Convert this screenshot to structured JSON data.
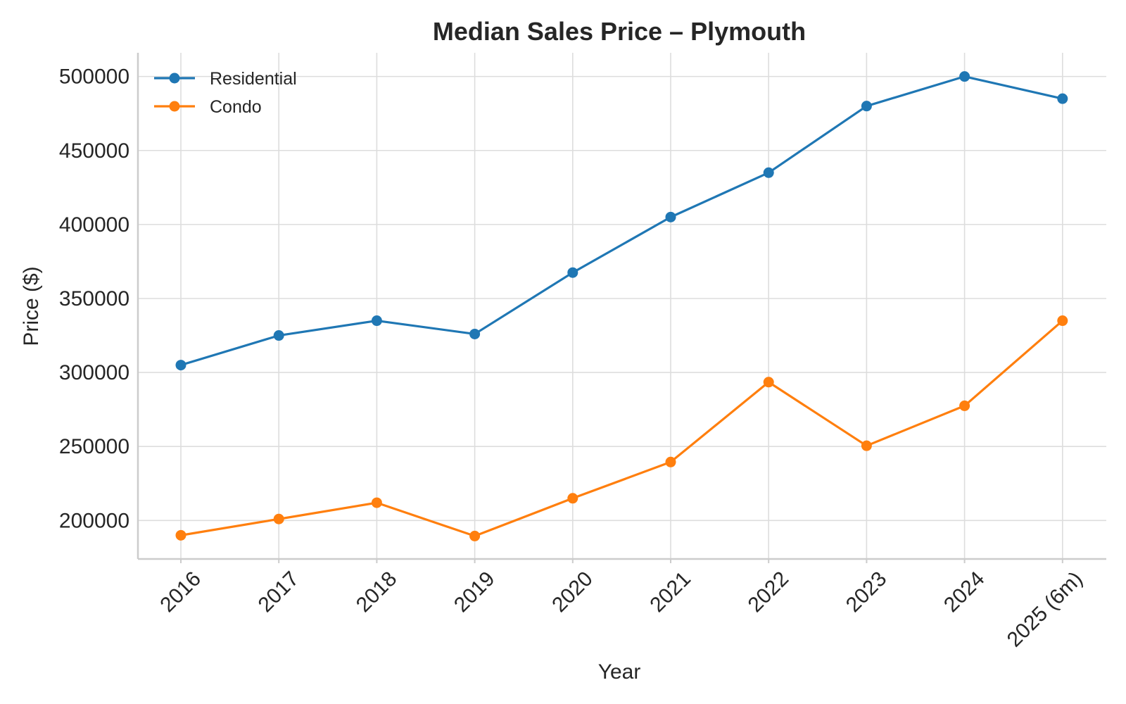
{
  "chart_data": {
    "type": "line",
    "title": "Median Sales Price – Plymouth",
    "xlabel": "Year",
    "ylabel": "Price ($)",
    "categories": [
      "2016",
      "2017",
      "2018",
      "2019",
      "2020",
      "2021",
      "2022",
      "2023",
      "2024",
      "2025 (6m)"
    ],
    "y_ticks": [
      200000,
      250000,
      300000,
      350000,
      400000,
      450000,
      500000
    ],
    "ylim": [
      174000,
      516000
    ],
    "grid": true,
    "legend_position": "top-left",
    "series": [
      {
        "name": "Residential",
        "color": "#1f77b4",
        "marker": "circle",
        "values": [
          305000,
          325000,
          335000,
          326000,
          367500,
          405000,
          435000,
          480000,
          500000,
          485000
        ]
      },
      {
        "name": "Condo",
        "color": "#ff7f0e",
        "marker": "circle",
        "values": [
          190000,
          201000,
          212000,
          189500,
          215000,
          239500,
          293500,
          250500,
          277500,
          335000
        ]
      }
    ]
  }
}
